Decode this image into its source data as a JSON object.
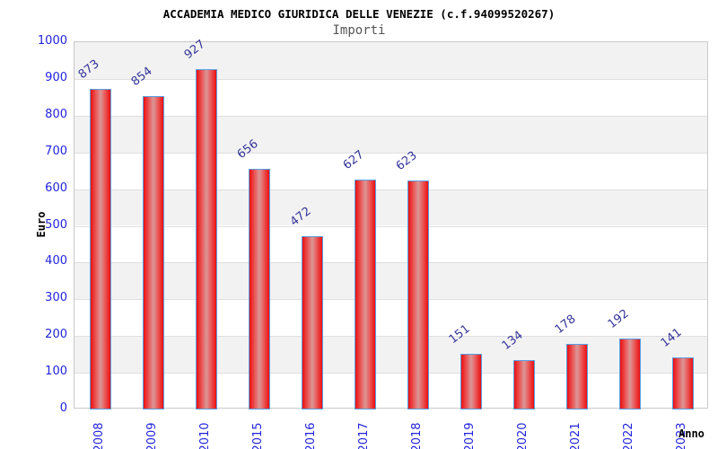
{
  "header": {
    "title": "ACCADEMIA MEDICO GIURIDICA DELLE VENEZIE (c.f.94099520267)",
    "subtitle": "Importi"
  },
  "chart_data": {
    "type": "bar",
    "title": "ACCADEMIA MEDICO GIURIDICA DELLE VENEZIE (c.f.94099520267)",
    "subtitle": "Importi",
    "categories": [
      "2008",
      "2009",
      "2010",
      "2015",
      "2016",
      "2017",
      "2018",
      "2019",
      "2020",
      "2021",
      "2022",
      "2023"
    ],
    "values": [
      873,
      854,
      927,
      656,
      472,
      627,
      623,
      151,
      134,
      178,
      192,
      141
    ],
    "xlabel": "Anno",
    "ylabel": "Euro",
    "ylim": [
      0,
      1000
    ],
    "ytick_step": 100,
    "yticks": [
      0,
      100,
      200,
      300,
      400,
      500,
      600,
      700,
      800,
      900,
      1000
    ],
    "grid": "horizontal-bands",
    "legend": "none",
    "colors": {
      "bar_fill": "#ec0f0f",
      "bar_fill_center": "#db9696",
      "bar_border": "#57a0e6",
      "axis_tick_text": "#2323dd",
      "value_label_text": "#333399",
      "band_fill": "#f2f2f2",
      "gridline": "#dfdfdf",
      "plot_border": "#c9c9c9",
      "subtitle_text": "#555555",
      "title_text": "#000000"
    }
  }
}
